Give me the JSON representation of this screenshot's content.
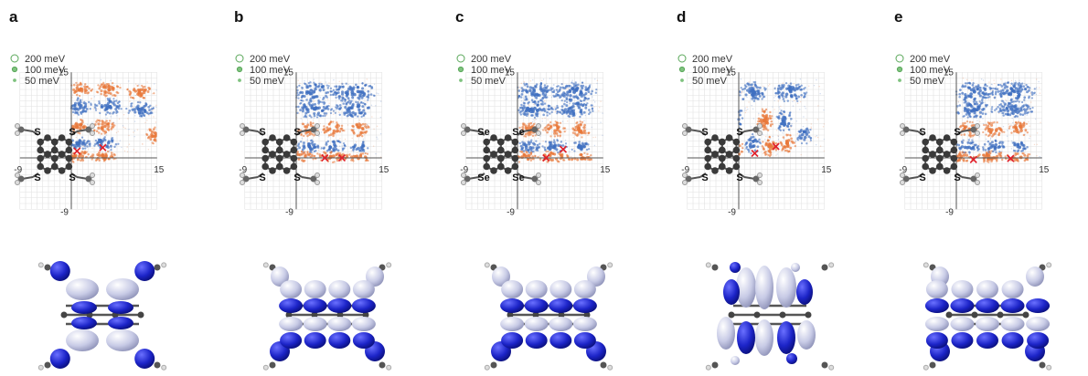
{
  "legend": [
    {
      "label": "200 meV",
      "fill": "none",
      "stroke": "#5aa85a"
    },
    {
      "label": "100 meV",
      "fill": "#7fc27f",
      "stroke": "#5aa85a"
    },
    {
      "label": "50 meV",
      "fill": "#7fc27f",
      "stroke": "#7fc27f"
    }
  ],
  "colors": {
    "positive": "#e8783a",
    "negative": "#3f6fc0",
    "marker": "#e0202a",
    "iso_dark": "#1c24c8",
    "iso_light": "#c8cbe6",
    "sulfur": "#f0f0b0"
  },
  "panels": [
    {
      "letter": "a",
      "atom": "S",
      "ticks": {
        "xmin": "-9",
        "xmax": "15",
        "ymax": "15",
        "ymin": "-9"
      },
      "markers": [
        [
          1.0,
          1.2
        ],
        [
          5.5,
          1.8
        ]
      ],
      "pattern": "a",
      "orbital": "a"
    },
    {
      "letter": "b",
      "atom": "S",
      "ticks": {
        "xmin": "-9",
        "xmax": "15",
        "ymax": "15",
        "ymin": "-9"
      },
      "markers": [
        [
          5.0,
          0.0
        ],
        [
          8.0,
          0.0
        ]
      ],
      "pattern": "b",
      "orbital": "b"
    },
    {
      "letter": "c",
      "atom": "Se",
      "ticks": {
        "xmin": "-9",
        "xmax": "15",
        "ymax": "15",
        "ymin": "-9"
      },
      "markers": [
        [
          5.0,
          0.0
        ],
        [
          8.0,
          1.5
        ]
      ],
      "pattern": "b",
      "orbital": "b"
    },
    {
      "letter": "d",
      "atom": "S",
      "ticks": {
        "xmin": "-9",
        "xmax": "15",
        "ymax": "15",
        "ymin": "-9"
      },
      "markers": [
        [
          2.8,
          0.8
        ],
        [
          6.5,
          2.0
        ]
      ],
      "pattern": "d",
      "orbital": "d"
    },
    {
      "letter": "e",
      "atom": "S",
      "ticks": {
        "xmin": "-9",
        "xmax": "15",
        "ymax": "15",
        "ymin": "-9"
      },
      "markers": [
        [
          3.0,
          -0.3
        ],
        [
          9.5,
          -0.1
        ]
      ],
      "pattern": "b",
      "orbital": "e"
    }
  ]
}
